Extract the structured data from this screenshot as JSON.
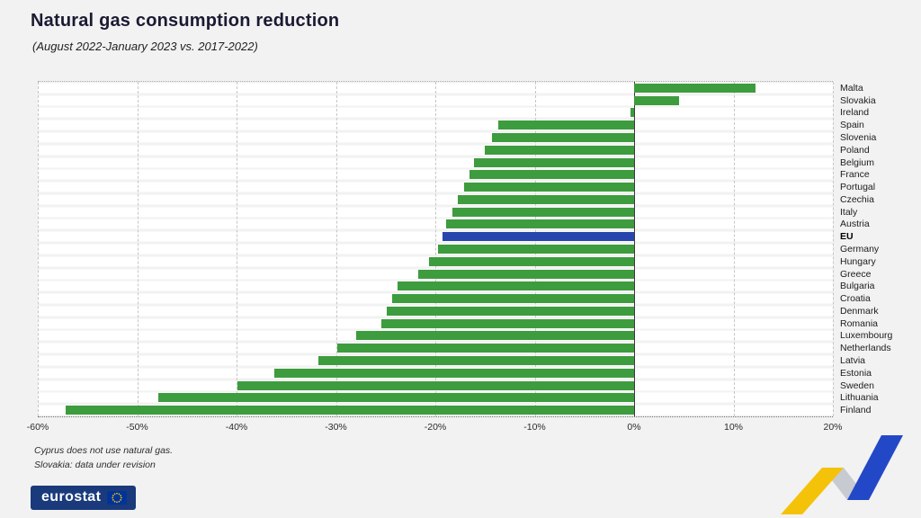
{
  "page": {
    "title": "Natural gas consumption reduction",
    "subtitle": "(August 2022-January 2023 vs. 2017-2022)",
    "footnote_1": "Cyprus does not use natural gas.",
    "footnote_2": "Slovakia: data under revision",
    "logo_text": "eurostat"
  },
  "colors": {
    "background": "#f2f2f2",
    "bar_green": "#3d9c3d",
    "bar_blue_eu": "#2746ad",
    "logo_blue": "#1a3a7c",
    "ribbon_yellow": "#f5c20a",
    "ribbon_gray": "#c7cbd1",
    "ribbon_blue": "#2348c7"
  },
  "chart_data": {
    "type": "bar",
    "orientation": "horizontal",
    "title": "Natural gas consumption reduction",
    "subtitle": "(August 2022-January 2023 vs. 2017-2022)",
    "unit": "%",
    "xlim": [
      -60,
      20
    ],
    "grid": "vertical-dashed",
    "legend": "none",
    "highlight_category": "EU",
    "x_ticks": [
      {
        "value": -60,
        "label": "-60%"
      },
      {
        "value": -50,
        "label": "-50%"
      },
      {
        "value": -40,
        "label": "-40%"
      },
      {
        "value": -30,
        "label": "-30%"
      },
      {
        "value": -20,
        "label": "-20%"
      },
      {
        "value": -10,
        "label": "-10%"
      },
      {
        "value": 0,
        "label": "0%"
      },
      {
        "value": 10,
        "label": "10%"
      },
      {
        "value": 20,
        "label": "20%"
      }
    ],
    "categories": [
      "Malta",
      "Slovakia",
      "Ireland",
      "Spain",
      "Slovenia",
      "Poland",
      "Belgium",
      "France",
      "Portugal",
      "Czechia",
      "Italy",
      "Austria",
      "EU",
      "Germany",
      "Hungary",
      "Greece",
      "Bulgaria",
      "Croatia",
      "Denmark",
      "Romania",
      "Luxembourg",
      "Netherlands",
      "Latvia",
      "Estonia",
      "Sweden",
      "Lithuania",
      "Finland"
    ],
    "values": [
      12.2,
      4.5,
      -0.4,
      -13.7,
      -14.3,
      -15.0,
      -16.1,
      -16.6,
      -17.1,
      -17.7,
      -18.3,
      -18.9,
      -19.3,
      -19.7,
      -20.6,
      -21.7,
      -23.8,
      -24.3,
      -24.9,
      -25.4,
      -28.0,
      -29.9,
      -31.8,
      -36.2,
      -39.9,
      -47.9,
      -57.2
    ]
  }
}
